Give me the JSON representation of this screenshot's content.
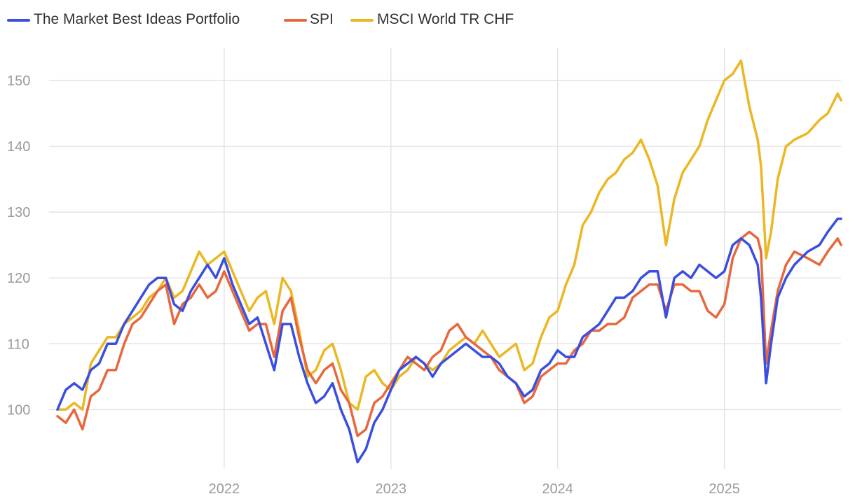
{
  "chart_data": {
    "type": "line",
    "title": "",
    "xlabel": "",
    "ylabel": "",
    "ylim": [
      91,
      155
    ],
    "xlim": [
      2021.0,
      2025.75
    ],
    "yticks": [
      100,
      110,
      120,
      130,
      140,
      150
    ],
    "xticks": [
      {
        "value": 2022,
        "label": "2022"
      },
      {
        "value": 2023,
        "label": "2023"
      },
      {
        "value": 2024,
        "label": "2024"
      },
      {
        "value": 2025,
        "label": "2025"
      }
    ],
    "grid": true,
    "legend_position": "top-left",
    "series": [
      {
        "name": "The Market Best Ideas Portfolio",
        "color": "#3a4ee0",
        "points": [
          [
            2021.0,
            100
          ],
          [
            2021.05,
            103
          ],
          [
            2021.1,
            104
          ],
          [
            2021.15,
            103
          ],
          [
            2021.2,
            106
          ],
          [
            2021.25,
            107
          ],
          [
            2021.3,
            110
          ],
          [
            2021.35,
            110
          ],
          [
            2021.4,
            113
          ],
          [
            2021.45,
            115
          ],
          [
            2021.5,
            117
          ],
          [
            2021.55,
            119
          ],
          [
            2021.6,
            120
          ],
          [
            2021.65,
            120
          ],
          [
            2021.7,
            116
          ],
          [
            2021.75,
            115
          ],
          [
            2021.8,
            118
          ],
          [
            2021.85,
            120
          ],
          [
            2021.9,
            122
          ],
          [
            2021.95,
            120
          ],
          [
            2022.0,
            123
          ],
          [
            2022.05,
            119
          ],
          [
            2022.1,
            116
          ],
          [
            2022.15,
            113
          ],
          [
            2022.2,
            114
          ],
          [
            2022.25,
            110
          ],
          [
            2022.3,
            106
          ],
          [
            2022.35,
            113
          ],
          [
            2022.4,
            113
          ],
          [
            2022.45,
            108
          ],
          [
            2022.5,
            104
          ],
          [
            2022.55,
            101
          ],
          [
            2022.6,
            102
          ],
          [
            2022.65,
            104
          ],
          [
            2022.7,
            100
          ],
          [
            2022.75,
            97
          ],
          [
            2022.8,
            92
          ],
          [
            2022.85,
            94
          ],
          [
            2022.9,
            98
          ],
          [
            2022.95,
            100
          ],
          [
            2023.0,
            103
          ],
          [
            2023.05,
            106
          ],
          [
            2023.1,
            107
          ],
          [
            2023.15,
            108
          ],
          [
            2023.2,
            107
          ],
          [
            2023.25,
            105
          ],
          [
            2023.3,
            107
          ],
          [
            2023.35,
            108
          ],
          [
            2023.4,
            109
          ],
          [
            2023.45,
            110
          ],
          [
            2023.5,
            109
          ],
          [
            2023.55,
            108
          ],
          [
            2023.6,
            108
          ],
          [
            2023.65,
            107
          ],
          [
            2023.7,
            105
          ],
          [
            2023.75,
            104
          ],
          [
            2023.8,
            102
          ],
          [
            2023.85,
            103
          ],
          [
            2023.9,
            106
          ],
          [
            2023.95,
            107
          ],
          [
            2024.0,
            109
          ],
          [
            2024.05,
            108
          ],
          [
            2024.1,
            108
          ],
          [
            2024.15,
            111
          ],
          [
            2024.2,
            112
          ],
          [
            2024.25,
            113
          ],
          [
            2024.3,
            115
          ],
          [
            2024.35,
            117
          ],
          [
            2024.4,
            117
          ],
          [
            2024.45,
            118
          ],
          [
            2024.5,
            120
          ],
          [
            2024.55,
            121
          ],
          [
            2024.6,
            121
          ],
          [
            2024.65,
            114
          ],
          [
            2024.7,
            120
          ],
          [
            2024.75,
            121
          ],
          [
            2024.8,
            120
          ],
          [
            2024.85,
            122
          ],
          [
            2024.9,
            121
          ],
          [
            2024.95,
            120
          ],
          [
            2025.0,
            121
          ],
          [
            2025.05,
            125
          ],
          [
            2025.1,
            126
          ],
          [
            2025.15,
            125
          ],
          [
            2025.2,
            122
          ],
          [
            2025.22,
            117
          ],
          [
            2025.25,
            104
          ],
          [
            2025.28,
            110
          ],
          [
            2025.32,
            117
          ],
          [
            2025.37,
            120
          ],
          [
            2025.42,
            122
          ],
          [
            2025.5,
            124
          ],
          [
            2025.57,
            125
          ],
          [
            2025.62,
            127
          ],
          [
            2025.68,
            129
          ],
          [
            2025.7,
            129
          ]
        ]
      },
      {
        "name": "SPI",
        "color": "#e8683e",
        "points": [
          [
            2021.0,
            99
          ],
          [
            2021.05,
            98
          ],
          [
            2021.1,
            100
          ],
          [
            2021.15,
            97
          ],
          [
            2021.2,
            102
          ],
          [
            2021.25,
            103
          ],
          [
            2021.3,
            106
          ],
          [
            2021.35,
            106
          ],
          [
            2021.4,
            110
          ],
          [
            2021.45,
            113
          ],
          [
            2021.5,
            114
          ],
          [
            2021.55,
            116
          ],
          [
            2021.6,
            118
          ],
          [
            2021.65,
            119
          ],
          [
            2021.7,
            113
          ],
          [
            2021.75,
            116
          ],
          [
            2021.8,
            117
          ],
          [
            2021.85,
            119
          ],
          [
            2021.9,
            117
          ],
          [
            2021.95,
            118
          ],
          [
            2022.0,
            121
          ],
          [
            2022.05,
            118
          ],
          [
            2022.1,
            115
          ],
          [
            2022.15,
            112
          ],
          [
            2022.2,
            113
          ],
          [
            2022.25,
            113
          ],
          [
            2022.3,
            108
          ],
          [
            2022.35,
            115
          ],
          [
            2022.4,
            117
          ],
          [
            2022.45,
            111
          ],
          [
            2022.5,
            106
          ],
          [
            2022.55,
            104
          ],
          [
            2022.6,
            106
          ],
          [
            2022.65,
            107
          ],
          [
            2022.7,
            103
          ],
          [
            2022.75,
            101
          ],
          [
            2022.8,
            96
          ],
          [
            2022.85,
            97
          ],
          [
            2022.9,
            101
          ],
          [
            2022.95,
            102
          ],
          [
            2023.0,
            104
          ],
          [
            2023.05,
            106
          ],
          [
            2023.1,
            108
          ],
          [
            2023.15,
            107
          ],
          [
            2023.2,
            106
          ],
          [
            2023.25,
            108
          ],
          [
            2023.3,
            109
          ],
          [
            2023.35,
            112
          ],
          [
            2023.4,
            113
          ],
          [
            2023.45,
            111
          ],
          [
            2023.5,
            110
          ],
          [
            2023.55,
            109
          ],
          [
            2023.6,
            108
          ],
          [
            2023.65,
            106
          ],
          [
            2023.7,
            105
          ],
          [
            2023.75,
            104
          ],
          [
            2023.8,
            101
          ],
          [
            2023.85,
            102
          ],
          [
            2023.9,
            105
          ],
          [
            2023.95,
            106
          ],
          [
            2024.0,
            107
          ],
          [
            2024.05,
            107
          ],
          [
            2024.1,
            109
          ],
          [
            2024.15,
            110
          ],
          [
            2024.2,
            112
          ],
          [
            2024.25,
            112
          ],
          [
            2024.3,
            113
          ],
          [
            2024.35,
            113
          ],
          [
            2024.4,
            114
          ],
          [
            2024.45,
            117
          ],
          [
            2024.5,
            118
          ],
          [
            2024.55,
            119
          ],
          [
            2024.6,
            119
          ],
          [
            2024.65,
            115
          ],
          [
            2024.7,
            119
          ],
          [
            2024.75,
            119
          ],
          [
            2024.8,
            118
          ],
          [
            2024.85,
            118
          ],
          [
            2024.9,
            115
          ],
          [
            2024.95,
            114
          ],
          [
            2025.0,
            116
          ],
          [
            2025.05,
            123
          ],
          [
            2025.1,
            126
          ],
          [
            2025.15,
            127
          ],
          [
            2025.2,
            126
          ],
          [
            2025.22,
            124
          ],
          [
            2025.25,
            107
          ],
          [
            2025.28,
            112
          ],
          [
            2025.32,
            118
          ],
          [
            2025.37,
            122
          ],
          [
            2025.42,
            124
          ],
          [
            2025.5,
            123
          ],
          [
            2025.57,
            122
          ],
          [
            2025.62,
            124
          ],
          [
            2025.68,
            126
          ],
          [
            2025.7,
            125
          ]
        ]
      },
      {
        "name": "MSCI World TR CHF",
        "color": "#ebb722",
        "points": [
          [
            2021.0,
            100
          ],
          [
            2021.05,
            100
          ],
          [
            2021.1,
            101
          ],
          [
            2021.15,
            100
          ],
          [
            2021.2,
            107
          ],
          [
            2021.25,
            109
          ],
          [
            2021.3,
            111
          ],
          [
            2021.35,
            111
          ],
          [
            2021.4,
            113
          ],
          [
            2021.45,
            114
          ],
          [
            2021.5,
            115
          ],
          [
            2021.55,
            117
          ],
          [
            2021.6,
            118
          ],
          [
            2021.65,
            120
          ],
          [
            2021.7,
            117
          ],
          [
            2021.75,
            118
          ],
          [
            2021.8,
            121
          ],
          [
            2021.85,
            124
          ],
          [
            2021.9,
            122
          ],
          [
            2021.95,
            123
          ],
          [
            2022.0,
            124
          ],
          [
            2022.05,
            121
          ],
          [
            2022.1,
            118
          ],
          [
            2022.15,
            115
          ],
          [
            2022.2,
            117
          ],
          [
            2022.25,
            118
          ],
          [
            2022.3,
            113
          ],
          [
            2022.35,
            120
          ],
          [
            2022.4,
            118
          ],
          [
            2022.45,
            112
          ],
          [
            2022.5,
            105
          ],
          [
            2022.55,
            106
          ],
          [
            2022.6,
            109
          ],
          [
            2022.65,
            110
          ],
          [
            2022.7,
            106
          ],
          [
            2022.75,
            101
          ],
          [
            2022.8,
            100
          ],
          [
            2022.85,
            105
          ],
          [
            2022.9,
            106
          ],
          [
            2022.95,
            104
          ],
          [
            2023.0,
            103
          ],
          [
            2023.05,
            105
          ],
          [
            2023.1,
            106
          ],
          [
            2023.15,
            108
          ],
          [
            2023.2,
            107
          ],
          [
            2023.25,
            106
          ],
          [
            2023.3,
            107
          ],
          [
            2023.35,
            109
          ],
          [
            2023.4,
            110
          ],
          [
            2023.45,
            111
          ],
          [
            2023.5,
            110
          ],
          [
            2023.55,
            112
          ],
          [
            2023.6,
            110
          ],
          [
            2023.65,
            108
          ],
          [
            2023.7,
            109
          ],
          [
            2023.75,
            110
          ],
          [
            2023.8,
            106
          ],
          [
            2023.85,
            107
          ],
          [
            2023.9,
            111
          ],
          [
            2023.95,
            114
          ],
          [
            2024.0,
            115
          ],
          [
            2024.05,
            119
          ],
          [
            2024.1,
            122
          ],
          [
            2024.15,
            128
          ],
          [
            2024.2,
            130
          ],
          [
            2024.25,
            133
          ],
          [
            2024.3,
            135
          ],
          [
            2024.35,
            136
          ],
          [
            2024.4,
            138
          ],
          [
            2024.45,
            139
          ],
          [
            2024.5,
            141
          ],
          [
            2024.55,
            138
          ],
          [
            2024.6,
            134
          ],
          [
            2024.65,
            125
          ],
          [
            2024.7,
            132
          ],
          [
            2024.75,
            136
          ],
          [
            2024.8,
            138
          ],
          [
            2024.85,
            140
          ],
          [
            2024.9,
            144
          ],
          [
            2024.95,
            147
          ],
          [
            2025.0,
            150
          ],
          [
            2025.05,
            151
          ],
          [
            2025.1,
            153
          ],
          [
            2025.15,
            146
          ],
          [
            2025.2,
            141
          ],
          [
            2025.22,
            137
          ],
          [
            2025.25,
            123
          ],
          [
            2025.28,
            127
          ],
          [
            2025.32,
            135
          ],
          [
            2025.37,
            140
          ],
          [
            2025.42,
            141
          ],
          [
            2025.5,
            142
          ],
          [
            2025.57,
            144
          ],
          [
            2025.62,
            145
          ],
          [
            2025.68,
            148
          ],
          [
            2025.7,
            147
          ]
        ]
      }
    ]
  }
}
